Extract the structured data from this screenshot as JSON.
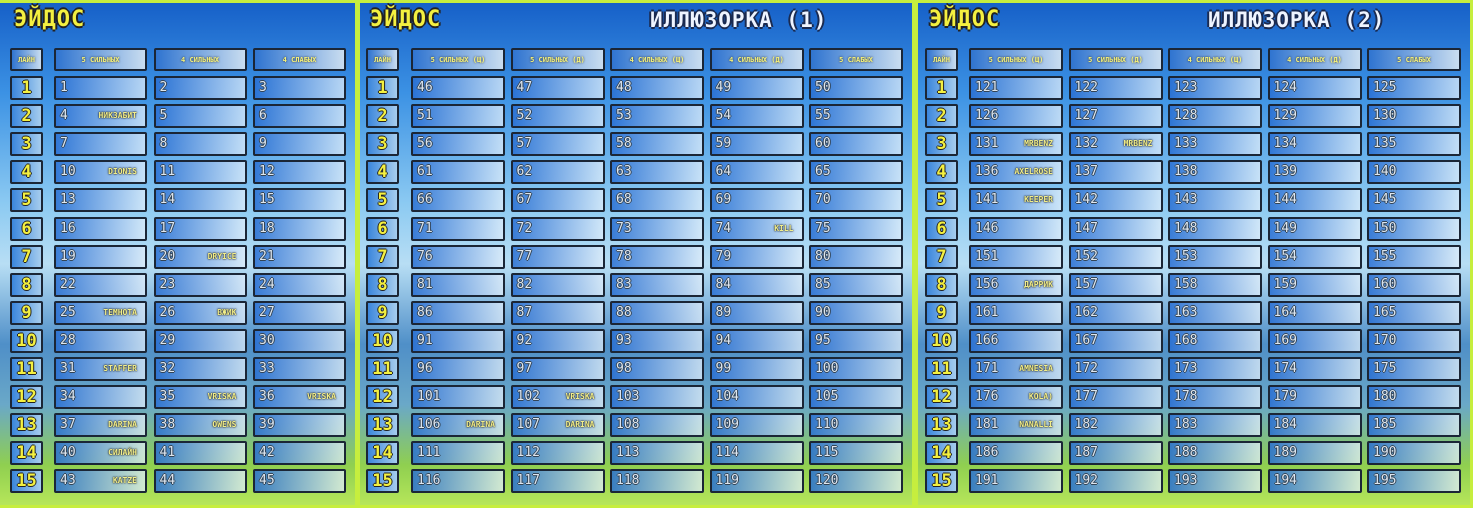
{
  "panels": [
    {
      "title": "ЭЙДОС",
      "headers": [
        "ЛАЙН",
        "5 СИЛЬНЫХ",
        "4 СИЛЬНЫХ",
        "4 СЛАБЫХ"
      ],
      "rows": [
        [
          1,
          1,
          2,
          3
        ],
        [
          2,
          {
            "n": 4,
            "name": "НИКЗАБИТ"
          },
          5,
          6
        ],
        [
          3,
          7,
          8,
          9
        ],
        [
          4,
          {
            "n": 10,
            "name": "DIONIS"
          },
          11,
          12
        ],
        [
          5,
          13,
          14,
          15
        ],
        [
          6,
          16,
          17,
          18
        ],
        [
          7,
          19,
          {
            "n": 20,
            "name": "DRYICE"
          },
          21
        ],
        [
          8,
          22,
          23,
          24
        ],
        [
          9,
          {
            "n": 25,
            "name": "ТЕМНОТА"
          },
          {
            "n": 26,
            "name": "ВЖИК"
          },
          27
        ],
        [
          10,
          28,
          29,
          30
        ],
        [
          11,
          {
            "n": 31,
            "name": "STAFFER"
          },
          32,
          33
        ],
        [
          12,
          34,
          {
            "n": 35,
            "name": "VRISKA"
          },
          {
            "n": 36,
            "name": "VRISKA"
          }
        ],
        [
          13,
          {
            "n": 37,
            "name": "DARINA"
          },
          {
            "n": 38,
            "name": "OWENS"
          },
          39
        ],
        [
          14,
          {
            "n": 40,
            "name": "СИЛАЙН"
          },
          41,
          42
        ],
        [
          15,
          {
            "n": 43,
            "name": "KATZE"
          },
          44,
          45
        ]
      ]
    },
    {
      "title": "ЭЙДОС",
      "subtitle": "ИЛЛЮЗОРКА (1)",
      "headers": [
        "ЛАЙН",
        "5 СИЛЬНЫХ (Щ)",
        "5 СИЛЬНЫХ (Д)",
        "4 СИЛЬНЫХ (Щ)",
        "4 СИЛЬНЫХ (Д)",
        "5 СЛАБЫХ"
      ],
      "rows": [
        [
          1,
          46,
          47,
          48,
          49,
          50
        ],
        [
          2,
          51,
          52,
          53,
          54,
          55
        ],
        [
          3,
          56,
          57,
          58,
          59,
          60
        ],
        [
          4,
          61,
          62,
          63,
          64,
          65
        ],
        [
          5,
          66,
          67,
          68,
          69,
          70
        ],
        [
          6,
          71,
          72,
          73,
          {
            "n": 74,
            "name": "KILL"
          },
          75
        ],
        [
          7,
          76,
          77,
          78,
          79,
          80
        ],
        [
          8,
          81,
          82,
          83,
          84,
          85
        ],
        [
          9,
          86,
          87,
          88,
          89,
          90
        ],
        [
          10,
          91,
          92,
          93,
          94,
          95
        ],
        [
          11,
          96,
          97,
          98,
          99,
          100
        ],
        [
          12,
          101,
          {
            "n": 102,
            "name": "VRISKA"
          },
          103,
          104,
          105
        ],
        [
          13,
          {
            "n": 106,
            "name": "DARINA"
          },
          {
            "n": 107,
            "name": "DARINA"
          },
          108,
          109,
          110
        ],
        [
          14,
          111,
          112,
          113,
          114,
          115
        ],
        [
          15,
          116,
          117,
          118,
          119,
          120
        ]
      ]
    },
    {
      "title": "ЭЙДОС",
      "subtitle": "ИЛЛЮЗОРКА (2)",
      "headers": [
        "ЛАЙН",
        "5 СИЛЬНЫХ (Щ)",
        "5 СИЛЬНЫХ (Д)",
        "4 СИЛЬНЫХ (Щ)",
        "4 СИЛЬНЫХ (Д)",
        "5 СЛАБЫХ"
      ],
      "rows": [
        [
          1,
          121,
          122,
          123,
          124,
          125
        ],
        [
          2,
          126,
          127,
          128,
          129,
          130
        ],
        [
          3,
          {
            "n": 131,
            "name": "MRBENZ"
          },
          {
            "n": 132,
            "name": "MRBENZ"
          },
          133,
          134,
          135
        ],
        [
          4,
          {
            "n": 136,
            "name": "AXELROSE"
          },
          137,
          138,
          139,
          140
        ],
        [
          5,
          {
            "n": 141,
            "name": "KEEPER"
          },
          142,
          143,
          144,
          145
        ],
        [
          6,
          146,
          147,
          148,
          149,
          150
        ],
        [
          7,
          151,
          152,
          153,
          154,
          155
        ],
        [
          8,
          {
            "n": 156,
            "name": "ДАРРИК"
          },
          157,
          158,
          159,
          160
        ],
        [
          9,
          161,
          162,
          163,
          164,
          165
        ],
        [
          10,
          166,
          167,
          168,
          169,
          170
        ],
        [
          11,
          {
            "n": 171,
            "name": "AMNESIA"
          },
          172,
          173,
          174,
          175
        ],
        [
          12,
          {
            "n": 176,
            "name": "KOLA)"
          },
          177,
          178,
          179,
          180
        ],
        [
          13,
          {
            "n": 181,
            "name": "NANALLI"
          },
          182,
          183,
          184,
          185
        ],
        [
          14,
          186,
          187,
          188,
          189,
          190
        ],
        [
          15,
          191,
          192,
          193,
          194,
          195
        ]
      ]
    }
  ]
}
